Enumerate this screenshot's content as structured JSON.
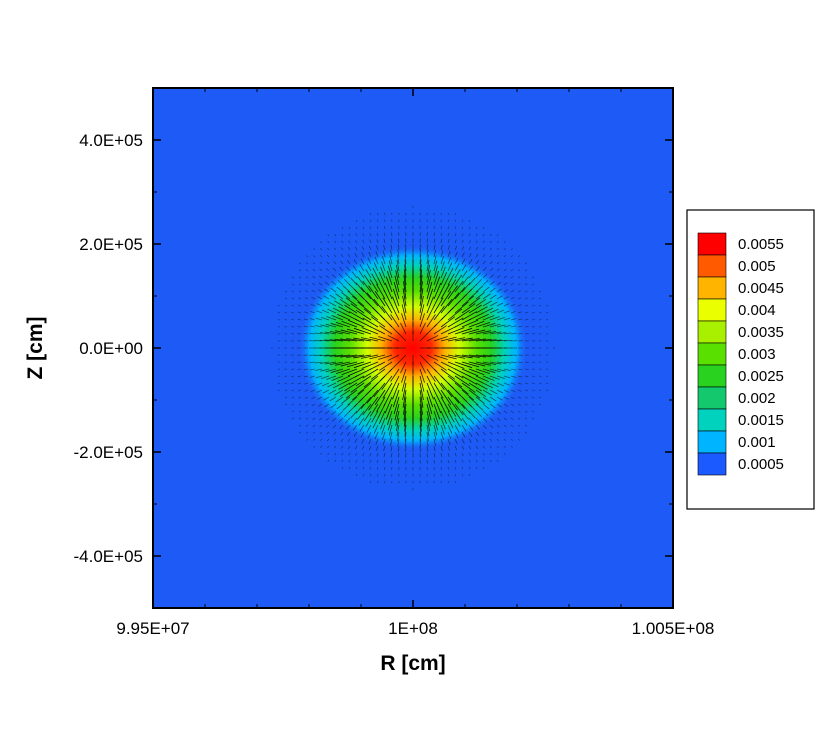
{
  "chart_data": {
    "type": "heatmap",
    "title": "",
    "xlabel": "R [cm]",
    "ylabel": "Z [cm]",
    "xlim": [
      99500000,
      100500000
    ],
    "ylim": [
      -500000,
      500000
    ],
    "x_ticks": [
      {
        "value": 99500000,
        "label": "9.95E+07"
      },
      {
        "value": 100000000,
        "label": "1E+08"
      },
      {
        "value": 100500000,
        "label": "1.005E+08"
      }
    ],
    "y_ticks": [
      {
        "value": 400000,
        "label": "4.0E+05"
      },
      {
        "value": 200000,
        "label": "2.0E+05"
      },
      {
        "value": 0,
        "label": "0.0E+00"
      },
      {
        "value": -200000,
        "label": "-2.0E+05"
      },
      {
        "value": -400000,
        "label": "-4.0E+05"
      }
    ],
    "field": {
      "description": "contour field with radial vector arrows",
      "peak_value": 0.0058,
      "peak_center": [
        100000000,
        0
      ],
      "radius_of_halfmax": 110000
    },
    "legend": {
      "placement": "right",
      "levels": [
        {
          "value": "0.0055",
          "color": "#ff0000"
        },
        {
          "value": "0.005",
          "color": "#ff5a00"
        },
        {
          "value": "0.0045",
          "color": "#ffb400"
        },
        {
          "value": "0.004",
          "color": "#eaff00"
        },
        {
          "value": "0.0035",
          "color": "#a8f000"
        },
        {
          "value": "0.003",
          "color": "#5ae000"
        },
        {
          "value": "0.0025",
          "color": "#28d21e"
        },
        {
          "value": "0.002",
          "color": "#14c86e"
        },
        {
          "value": "0.0015",
          "color": "#00d2be"
        },
        {
          "value": "0.001",
          "color": "#00b4ff"
        },
        {
          "value": "0.0005",
          "color": "#1a5aff"
        }
      ]
    }
  },
  "colors": {
    "background_field": "#1e5af5"
  }
}
